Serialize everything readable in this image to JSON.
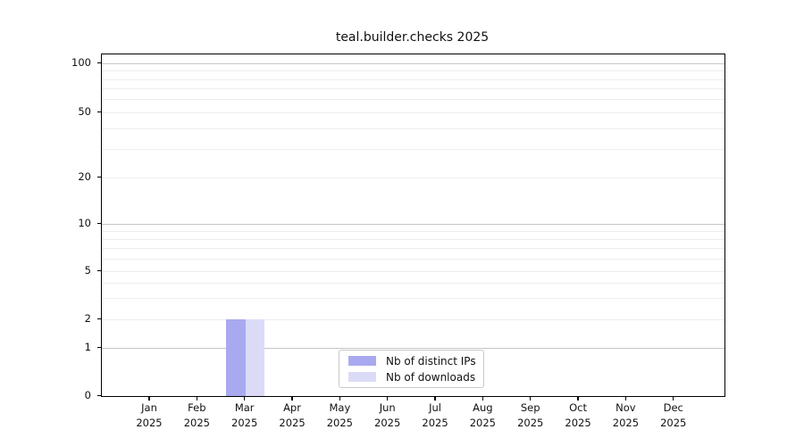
{
  "title": "teal.builder.checks 2025",
  "chart_data": {
    "type": "bar",
    "title": "teal.builder.checks 2025",
    "categories": [
      "Jan",
      "Feb",
      "Mar",
      "Apr",
      "May",
      "Jun",
      "Jul",
      "Aug",
      "Sep",
      "Oct",
      "Nov",
      "Dec"
    ],
    "year": "2025",
    "series": [
      {
        "name": "Nb of distinct IPs",
        "color": "#a9a9f0",
        "values": [
          0,
          0,
          2,
          0,
          0,
          0,
          0,
          0,
          0,
          0,
          0,
          0
        ]
      },
      {
        "name": "Nb of downloads",
        "color": "#dbdbf8",
        "values": [
          0,
          0,
          2,
          0,
          0,
          0,
          0,
          0,
          0,
          0,
          0,
          0
        ]
      }
    ],
    "xlabel": "",
    "ylabel": "",
    "yscale": "log-like",
    "ylim": [
      0,
      110
    ],
    "grid": "horizontal major and minor gridlines",
    "legend_position": "bottom-center-inside",
    "y_ticks": [
      {
        "label": "100",
        "offset": 10,
        "major": true,
        "grid": true
      },
      {
        "label": "50",
        "offset": 65,
        "major": false,
        "grid": true
      },
      {
        "label": "20",
        "offset": 138,
        "major": false,
        "grid": true
      },
      {
        "label": "10",
        "offset": 190,
        "major": true,
        "grid": true
      },
      {
        "label": "5",
        "offset": 243,
        "major": false,
        "grid": true
      },
      {
        "label": "2",
        "offset": 297,
        "major": false,
        "grid": true
      },
      {
        "label": "1",
        "offset": 329,
        "major": true,
        "grid": true
      },
      {
        "label": "0",
        "offset": 383,
        "major": false,
        "grid": false
      }
    ],
    "minor_grid_offsets": [
      18,
      28,
      38,
      50,
      83,
      106,
      198,
      207,
      217,
      229,
      256,
      273
    ]
  },
  "legend": {
    "items": [
      {
        "label": "Nb of distinct IPs",
        "color": "#a9a9f0"
      },
      {
        "label": "Nb of downloads",
        "color": "#dbdbf8"
      }
    ]
  }
}
